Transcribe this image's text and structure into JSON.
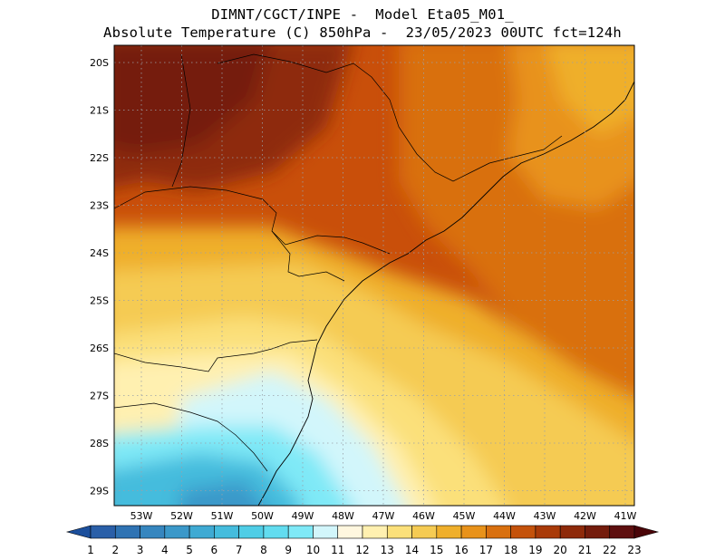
{
  "title": {
    "line1": "DIMNT/CGCT/INPE -  Model Eta05_M01_",
    "line2": "Absolute Temperature (C) 850hPa -  23/05/2023 00UTC fct=124h"
  },
  "map": {
    "lat_labels": [
      "20S",
      "21S",
      "22S",
      "23S",
      "24S",
      "25S",
      "26S",
      "27S",
      "28S",
      "29S"
    ],
    "lon_labels": [
      "53W",
      "52W",
      "51W",
      "50W",
      "49W",
      "48W",
      "47W",
      "46W",
      "45W",
      "44W",
      "43W",
      "42W",
      "41W"
    ],
    "grid": "dotted",
    "field_levels_C": [
      {
        "name": "very_warm_nw",
        "value": 22
      },
      {
        "name": "warm_north",
        "value": 20
      },
      {
        "name": "east_orange",
        "value": 18
      },
      {
        "name": "central_yellow",
        "value": 15
      },
      {
        "name": "cool_south",
        "value": 10
      }
    ]
  },
  "colorbar": {
    "labels": [
      "1",
      "2",
      "3",
      "4",
      "5",
      "6",
      "7",
      "8",
      "9",
      "10",
      "11",
      "12",
      "13",
      "14",
      "15",
      "16",
      "17",
      "18",
      "19",
      "20",
      "21",
      "22",
      "23"
    ],
    "colors": [
      "#1c4f9c",
      "#2a5fa8",
      "#2f73b3",
      "#3686bf",
      "#3b98c9",
      "#3faad3",
      "#45bcdd",
      "#4fcde6",
      "#62dcef",
      "#7fe9f7",
      "#d2f6fb",
      "#fff7df",
      "#fff0b0",
      "#fbe07a",
      "#f5cb53",
      "#efaf2b",
      "#e8921a",
      "#d9700f",
      "#c4520b",
      "#a93a08",
      "#8e2a0a",
      "#741c0c",
      "#5e0f0f",
      "#4a0408"
    ]
  }
}
